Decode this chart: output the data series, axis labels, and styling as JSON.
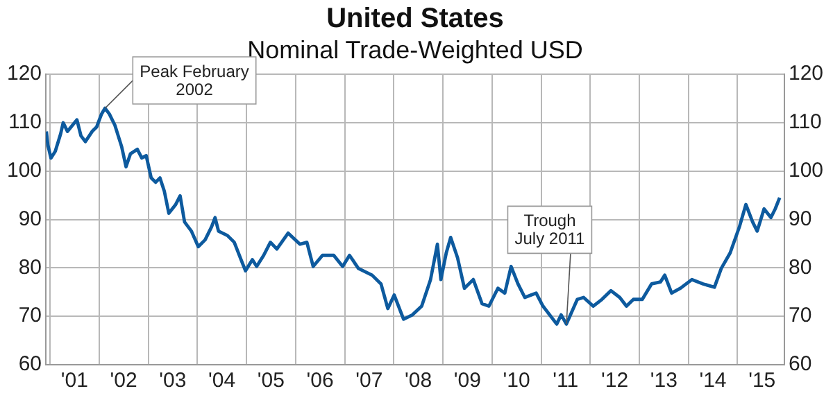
{
  "chart_data": {
    "type": "line",
    "title": "United States",
    "subtitle": "Nominal Trade-Weighted USD",
    "x": [
      "2000-12-05",
      "2000-12-16",
      "2001-01-08",
      "2001-02-09",
      "2001-03-21",
      "2001-04-09",
      "2001-05-11",
      "2001-07-02",
      "2001-07-20",
      "2001-08-19",
      "2001-09-21",
      "2001-11-10",
      "2001-12-13",
      "2002-01-19",
      "2002-02-14",
      "2002-03-18",
      "2002-04-28",
      "2002-06-18",
      "2002-07-20",
      "2002-08-22",
      "2002-10-12",
      "2002-11-14",
      "2002-12-17",
      "2003-01-23",
      "2003-02-25",
      "2003-03-29",
      "2003-05-01",
      "2003-06-03",
      "2003-07-24",
      "2003-08-26",
      "2003-09-28",
      "2003-11-18",
      "2004-01-08",
      "2004-02-28",
      "2004-04-16",
      "2004-05-12",
      "2004-06-07",
      "2004-08-12",
      "2004-10-02",
      "2004-11-22",
      "2004-12-25",
      "2005-02-14",
      "2005-03-18",
      "2005-05-09",
      "2005-06-28",
      "2005-08-15",
      "2005-11-07",
      "2006-02-03",
      "2006-03-26",
      "2006-05-12",
      "2006-07-20",
      "2006-10-12",
      "2006-12-17",
      "2007-02-06",
      "2007-04-13",
      "2007-07-24",
      "2007-09-28",
      "2007-11-18",
      "2008-01-04",
      "2008-03-14",
      "2008-05-19",
      "2008-07-27",
      "2008-10-01",
      "2008-11-21",
      "2008-12-17",
      "2009-01-26",
      "2009-02-28",
      "2009-04-20",
      "2009-06-10",
      "2009-08-15",
      "2009-10-19",
      "2009-12-09",
      "2010-02-14",
      "2010-04-06",
      "2010-05-23",
      "2010-07-13",
      "2010-09-02",
      "2010-11-25",
      "2011-01-15",
      "2011-04-27",
      "2011-05-30",
      "2011-07-08",
      "2011-09-27",
      "2011-11-13",
      "2012-01-23",
      "2012-03-28",
      "2012-06-03",
      "2012-08-08",
      "2012-09-27",
      "2012-11-18",
      "2013-01-23",
      "2013-04-02",
      "2013-06-07",
      "2013-07-09",
      "2013-08-29",
      "2013-11-03",
      "2014-01-27",
      "2014-04-20",
      "2014-07-13",
      "2014-09-02",
      "2014-11-07",
      "2015-01-15",
      "2015-03-04",
      "2015-04-23",
      "2015-05-27",
      "2015-07-17",
      "2015-09-06",
      "2015-10-08",
      "2015-11-10"
    ],
    "series": [
      {
        "color": "#0d5a9e",
        "values": [
          108.2,
          105.4,
          102.7,
          104.1,
          107.7,
          110,
          108.2,
          110,
          110.6,
          107.3,
          106.1,
          108.2,
          109.1,
          111.8,
          113,
          111.8,
          109.5,
          105,
          100.9,
          103.6,
          104.5,
          102.7,
          103.2,
          98.6,
          97.7,
          98.6,
          95.8,
          91.3,
          93.1,
          94.9,
          89.5,
          87.6,
          84.4,
          85.8,
          88.5,
          90.4,
          87.6,
          86.7,
          85.3,
          81.7,
          79.4,
          81.7,
          80.3,
          82.6,
          85.3,
          83.9,
          87.2,
          84.9,
          85.3,
          80.3,
          82.6,
          82.6,
          80.3,
          82.6,
          79.9,
          78.5,
          76.7,
          71.6,
          74.4,
          69.4,
          70.3,
          72.1,
          77.6,
          84.9,
          77.6,
          83.1,
          86.3,
          82.1,
          75.8,
          77.6,
          72.6,
          72.1,
          75.8,
          74.8,
          80.3,
          76.7,
          73.9,
          74.8,
          72.1,
          68.4,
          70.3,
          68.4,
          73.5,
          73.9,
          72.1,
          73.5,
          75.3,
          73.9,
          72.1,
          73.5,
          73.5,
          76.7,
          77.1,
          78.5,
          74.8,
          75.8,
          77.6,
          76.7,
          76,
          79.9,
          83.1,
          88.5,
          93.1,
          89.5,
          87.6,
          92.2,
          90.4,
          92.2,
          94.5
        ]
      }
    ],
    "xlim": [
      "2000-12-01",
      "2015-12-15"
    ],
    "xticks": [
      {
        "value": "2001-01-01",
        "label": null
      },
      {
        "value": "2001-07-02",
        "label": "'01"
      },
      {
        "value": "2002-01-01",
        "label": null
      },
      {
        "value": "2002-07-02",
        "label": "'02"
      },
      {
        "value": "2003-01-01",
        "label": null
      },
      {
        "value": "2003-07-02",
        "label": "'03"
      },
      {
        "value": "2004-01-01",
        "label": null
      },
      {
        "value": "2004-07-02",
        "label": "'04"
      },
      {
        "value": "2005-01-01",
        "label": null
      },
      {
        "value": "2005-07-02",
        "label": "'05"
      },
      {
        "value": "2006-01-01",
        "label": null
      },
      {
        "value": "2006-07-02",
        "label": "'06"
      },
      {
        "value": "2007-01-01",
        "label": null
      },
      {
        "value": "2007-07-02",
        "label": "'07"
      },
      {
        "value": "2008-01-01",
        "label": null
      },
      {
        "value": "2008-07-02",
        "label": "'08"
      },
      {
        "value": "2009-01-01",
        "label": null
      },
      {
        "value": "2009-07-02",
        "label": "'09"
      },
      {
        "value": "2010-01-01",
        "label": null
      },
      {
        "value": "2010-07-02",
        "label": "'10"
      },
      {
        "value": "2011-01-01",
        "label": null
      },
      {
        "value": "2011-07-02",
        "label": "'11"
      },
      {
        "value": "2012-01-01",
        "label": null
      },
      {
        "value": "2012-07-02",
        "label": "'12"
      },
      {
        "value": "2013-01-01",
        "label": null
      },
      {
        "value": "2013-07-02",
        "label": "'13"
      },
      {
        "value": "2014-01-01",
        "label": null
      },
      {
        "value": "2014-07-02",
        "label": "'14"
      },
      {
        "value": "2015-01-01",
        "label": null
      },
      {
        "value": "2015-07-02",
        "label": "'15"
      }
    ],
    "ylim": [
      60,
      120
    ],
    "yticks": [
      60,
      70,
      80,
      90,
      100,
      110,
      120
    ],
    "y2lim": [
      60,
      120
    ],
    "y2ticks": [
      60,
      70,
      80,
      90,
      100,
      110,
      120
    ],
    "grid": true,
    "legend": false,
    "marker": "none",
    "line_style": "solid",
    "annotations": [
      {
        "text": "Peak February 2002",
        "x": "2002-02-14",
        "y": 113
      },
      {
        "text": "Trough July 2011",
        "x": "2011-07-08",
        "y": 68.4
      }
    ]
  }
}
